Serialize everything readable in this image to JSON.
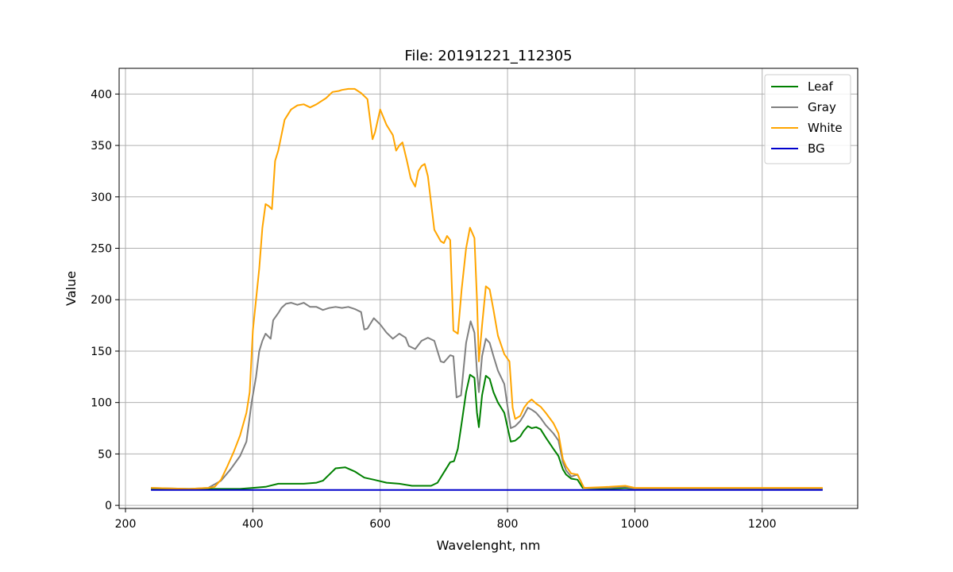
{
  "chart_data": {
    "type": "line",
    "title": "File: 20191221_112305",
    "xlabel": "Wavelenght, nm",
    "ylabel": "Value",
    "xlim": [
      190,
      1350
    ],
    "ylim": [
      -3,
      425
    ],
    "xticks": [
      200,
      400,
      600,
      800,
      1000,
      1200
    ],
    "yticks": [
      0,
      50,
      100,
      150,
      200,
      250,
      300,
      350,
      400
    ],
    "grid": true,
    "legend_position": "top-right",
    "series": [
      {
        "name": "Leaf",
        "color": "#008000",
        "points": [
          [
            240,
            16
          ],
          [
            300,
            16
          ],
          [
            340,
            16
          ],
          [
            380,
            16
          ],
          [
            400,
            17
          ],
          [
            420,
            18
          ],
          [
            440,
            21
          ],
          [
            460,
            21
          ],
          [
            480,
            21
          ],
          [
            500,
            22
          ],
          [
            510,
            24
          ],
          [
            520,
            30
          ],
          [
            530,
            36
          ],
          [
            545,
            37
          ],
          [
            560,
            33
          ],
          [
            575,
            27
          ],
          [
            590,
            25
          ],
          [
            610,
            22
          ],
          [
            630,
            21
          ],
          [
            650,
            19
          ],
          [
            680,
            19
          ],
          [
            690,
            22
          ],
          [
            700,
            32
          ],
          [
            710,
            42
          ],
          [
            716,
            43
          ],
          [
            722,
            55
          ],
          [
            728,
            80
          ],
          [
            735,
            110
          ],
          [
            741,
            127
          ],
          [
            748,
            124
          ],
          [
            752,
            90
          ],
          [
            755,
            76
          ],
          [
            760,
            107
          ],
          [
            766,
            126
          ],
          [
            772,
            123
          ],
          [
            778,
            110
          ],
          [
            785,
            100
          ],
          [
            795,
            90
          ],
          [
            805,
            62
          ],
          [
            812,
            63
          ],
          [
            820,
            67
          ],
          [
            825,
            72
          ],
          [
            832,
            77
          ],
          [
            838,
            75
          ],
          [
            845,
            76
          ],
          [
            852,
            74
          ],
          [
            860,
            66
          ],
          [
            872,
            55
          ],
          [
            880,
            48
          ],
          [
            887,
            35
          ],
          [
            892,
            30
          ],
          [
            900,
            26
          ],
          [
            910,
            25
          ],
          [
            918,
            17
          ],
          [
            960,
            16
          ],
          [
            985,
            17
          ],
          [
            1000,
            16
          ],
          [
            1100,
            16
          ],
          [
            1200,
            16
          ],
          [
            1295,
            16
          ]
        ]
      },
      {
        "name": "Gray",
        "color": "#808080",
        "points": [
          [
            240,
            17
          ],
          [
            300,
            16
          ],
          [
            330,
            17
          ],
          [
            350,
            24
          ],
          [
            365,
            35
          ],
          [
            380,
            48
          ],
          [
            390,
            62
          ],
          [
            398,
            100
          ],
          [
            405,
            125
          ],
          [
            410,
            150
          ],
          [
            415,
            160
          ],
          [
            420,
            167
          ],
          [
            428,
            162
          ],
          [
            432,
            180
          ],
          [
            440,
            187
          ],
          [
            445,
            192
          ],
          [
            452,
            196
          ],
          [
            460,
            197
          ],
          [
            470,
            195
          ],
          [
            480,
            197
          ],
          [
            490,
            193
          ],
          [
            500,
            193
          ],
          [
            510,
            190
          ],
          [
            520,
            192
          ],
          [
            530,
            193
          ],
          [
            540,
            192
          ],
          [
            550,
            193
          ],
          [
            560,
            191
          ],
          [
            570,
            188
          ],
          [
            575,
            171
          ],
          [
            580,
            172
          ],
          [
            590,
            182
          ],
          [
            600,
            176
          ],
          [
            610,
            168
          ],
          [
            620,
            162
          ],
          [
            630,
            167
          ],
          [
            640,
            163
          ],
          [
            645,
            155
          ],
          [
            655,
            152
          ],
          [
            665,
            160
          ],
          [
            675,
            163
          ],
          [
            685,
            160
          ],
          [
            695,
            140
          ],
          [
            700,
            139
          ],
          [
            710,
            146
          ],
          [
            715,
            145
          ],
          [
            720,
            105
          ],
          [
            727,
            107
          ],
          [
            735,
            158
          ],
          [
            742,
            179
          ],
          [
            748,
            168
          ],
          [
            752,
            130
          ],
          [
            755,
            110
          ],
          [
            760,
            145
          ],
          [
            766,
            162
          ],
          [
            772,
            158
          ],
          [
            778,
            145
          ],
          [
            785,
            131
          ],
          [
            795,
            118
          ],
          [
            805,
            75
          ],
          [
            812,
            77
          ],
          [
            820,
            82
          ],
          [
            826,
            88
          ],
          [
            832,
            95
          ],
          [
            838,
            93
          ],
          [
            845,
            90
          ],
          [
            852,
            85
          ],
          [
            860,
            78
          ],
          [
            872,
            70
          ],
          [
            880,
            63
          ],
          [
            887,
            42
          ],
          [
            892,
            34
          ],
          [
            900,
            28
          ],
          [
            910,
            30
          ],
          [
            920,
            17
          ],
          [
            960,
            17
          ],
          [
            985,
            18
          ],
          [
            1000,
            16
          ],
          [
            1100,
            16
          ],
          [
            1200,
            16
          ],
          [
            1295,
            16
          ]
        ]
      },
      {
        "name": "White",
        "color": "#FFA500",
        "points": [
          [
            240,
            17
          ],
          [
            300,
            16
          ],
          [
            330,
            17
          ],
          [
            340,
            18
          ],
          [
            350,
            25
          ],
          [
            360,
            38
          ],
          [
            370,
            52
          ],
          [
            380,
            68
          ],
          [
            390,
            90
          ],
          [
            395,
            110
          ],
          [
            400,
            170
          ],
          [
            405,
            200
          ],
          [
            410,
            230
          ],
          [
            415,
            270
          ],
          [
            420,
            293
          ],
          [
            425,
            291
          ],
          [
            430,
            288
          ],
          [
            435,
            335
          ],
          [
            440,
            345
          ],
          [
            445,
            360
          ],
          [
            450,
            375
          ],
          [
            455,
            380
          ],
          [
            460,
            385
          ],
          [
            470,
            389
          ],
          [
            480,
            390
          ],
          [
            490,
            387
          ],
          [
            500,
            390
          ],
          [
            505,
            392
          ],
          [
            515,
            396
          ],
          [
            525,
            402
          ],
          [
            535,
            403
          ],
          [
            540,
            404
          ],
          [
            550,
            405
          ],
          [
            560,
            405
          ],
          [
            570,
            401
          ],
          [
            580,
            395
          ],
          [
            588,
            356
          ],
          [
            592,
            363
          ],
          [
            600,
            385
          ],
          [
            610,
            370
          ],
          [
            620,
            360
          ],
          [
            625,
            345
          ],
          [
            630,
            350
          ],
          [
            635,
            353
          ],
          [
            642,
            335
          ],
          [
            648,
            318
          ],
          [
            655,
            310
          ],
          [
            660,
            325
          ],
          [
            665,
            330
          ],
          [
            670,
            332
          ],
          [
            675,
            320
          ],
          [
            685,
            268
          ],
          [
            695,
            257
          ],
          [
            700,
            255
          ],
          [
            705,
            262
          ],
          [
            710,
            258
          ],
          [
            715,
            170
          ],
          [
            722,
            167
          ],
          [
            728,
            210
          ],
          [
            735,
            250
          ],
          [
            741,
            270
          ],
          [
            748,
            260
          ],
          [
            752,
            200
          ],
          [
            755,
            140
          ],
          [
            760,
            175
          ],
          [
            766,
            213
          ],
          [
            772,
            210
          ],
          [
            778,
            190
          ],
          [
            785,
            165
          ],
          [
            795,
            147
          ],
          [
            803,
            140
          ],
          [
            808,
            95
          ],
          [
            812,
            84
          ],
          [
            820,
            87
          ],
          [
            826,
            95
          ],
          [
            832,
            100
          ],
          [
            838,
            103
          ],
          [
            845,
            99
          ],
          [
            852,
            96
          ],
          [
            860,
            90
          ],
          [
            872,
            80
          ],
          [
            880,
            70
          ],
          [
            887,
            45
          ],
          [
            892,
            38
          ],
          [
            900,
            31
          ],
          [
            910,
            30
          ],
          [
            920,
            17
          ],
          [
            960,
            18
          ],
          [
            985,
            19
          ],
          [
            1000,
            17
          ],
          [
            1100,
            17
          ],
          [
            1200,
            17
          ],
          [
            1295,
            17
          ]
        ]
      },
      {
        "name": "BG",
        "color": "#0000CC",
        "points": [
          [
            240,
            15
          ],
          [
            1295,
            15
          ]
        ]
      }
    ]
  }
}
